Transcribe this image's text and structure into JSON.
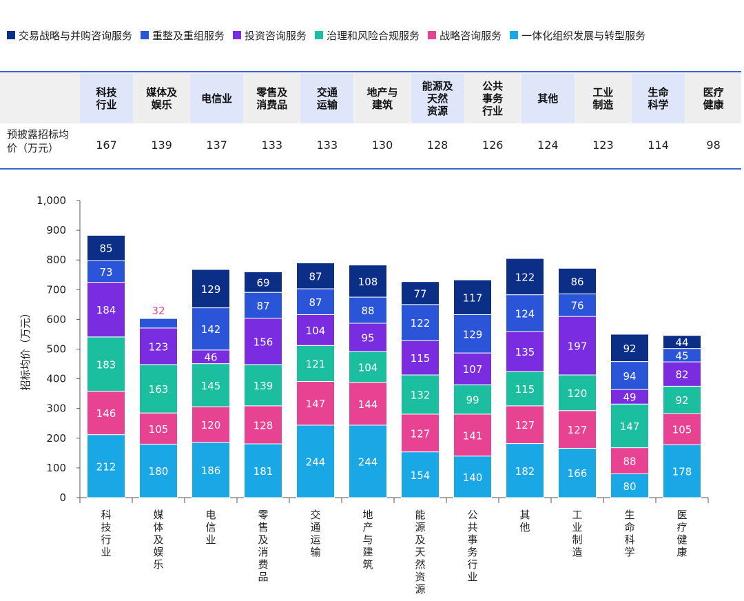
{
  "colors": {
    "series": [
      "#1aa7e6",
      "#e84393",
      "#1bbfa0",
      "#7a2de0",
      "#2b55d9",
      "#0b2e86"
    ],
    "table_border": "#3b63d6",
    "header_blue": "#dfe6fa",
    "header_gray": "#eeeeee"
  },
  "table": {
    "row_label": "预披露招标均价（万元）",
    "headers": [
      "科技行业",
      "媒体及娱乐",
      "电信业",
      "零售及消费品",
      "交通运输",
      "地产与建筑",
      "能源及天然资源",
      "公共事务行业",
      "其他",
      "工业制造",
      "生命科学",
      "医疗健康"
    ],
    "values": [
      "167",
      "139",
      "137",
      "133",
      "133",
      "130",
      "128",
      "126",
      "124",
      "123",
      "114",
      "98"
    ]
  },
  "chart_data": {
    "type": "bar",
    "stacked": true,
    "title": "",
    "xlabel": "",
    "ylabel": "招标均价（万元）",
    "ylim": [
      0,
      1000
    ],
    "yticks": [
      "0",
      "100",
      "200",
      "300",
      "400",
      "500",
      "600",
      "700",
      "800",
      "900",
      "1,000"
    ],
    "categories": [
      "科技行业",
      "媒体及娱乐",
      "电信业",
      "零售及消费品",
      "交通运输",
      "地产与建筑",
      "能源及天然资源",
      "公共事务行业",
      "其他",
      "工业制造",
      "生命科学",
      "医疗健康"
    ],
    "series": [
      {
        "name": "一体化组织发展与转型服务",
        "values": [
          212,
          180,
          186,
          181,
          244,
          244,
          154,
          140,
          182,
          166,
          80,
          178
        ]
      },
      {
        "name": "战略咨询服务",
        "values": [
          146,
          105,
          120,
          128,
          147,
          144,
          127,
          141,
          127,
          127,
          88,
          105
        ]
      },
      {
        "name": "治理和风险合规服务",
        "values": [
          183,
          163,
          145,
          139,
          121,
          104,
          132,
          99,
          115,
          120,
          147,
          92
        ]
      },
      {
        "name": "投资咨询服务",
        "values": [
          184,
          123,
          46,
          156,
          104,
          95,
          115,
          107,
          135,
          197,
          49,
          82
        ]
      },
      {
        "name": "重整及重组服务",
        "values": [
          73,
          32,
          142,
          87,
          87,
          88,
          122,
          129,
          124,
          76,
          94,
          45
        ]
      },
      {
        "name": "交易战略与并购咨询服务",
        "values": [
          85,
          null,
          129,
          69,
          87,
          108,
          77,
          117,
          122,
          86,
          92,
          44
        ]
      }
    ],
    "legend": [
      "交易战略与并购咨询服务",
      "重整及重组服务",
      "投资咨询服务",
      "治理和风险合规服务",
      "战略咨询服务",
      "一体化组织发展与转型服务"
    ],
    "legend_position": "top"
  }
}
